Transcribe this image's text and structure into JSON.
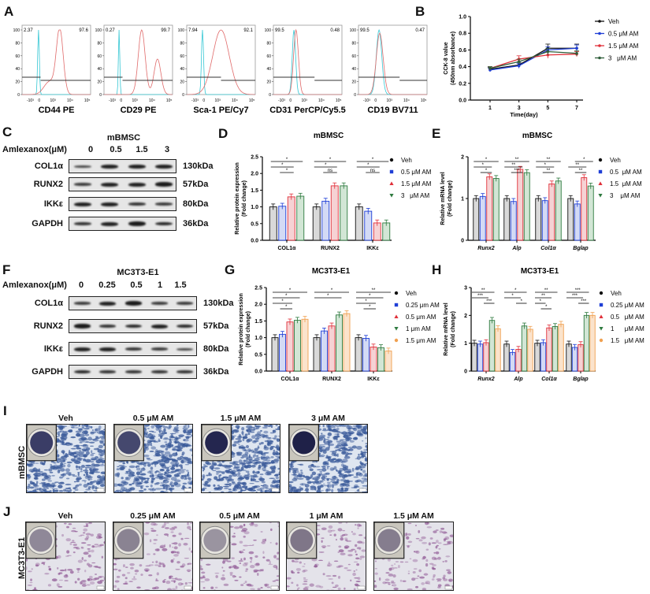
{
  "panel_letters": [
    "A",
    "B",
    "C",
    "D",
    "E",
    "F",
    "G",
    "H",
    "I",
    "J"
  ],
  "flow": {
    "y_ticks": [
      "0",
      "20",
      "40",
      "60",
      "80",
      "100"
    ],
    "x_ticks": [
      "-10³",
      "0",
      "10³",
      "10⁴",
      "10⁵"
    ],
    "panels": [
      {
        "marker": "CD44 PE",
        "neg_pct": "2.37",
        "pos_pct": "97.6"
      },
      {
        "marker": "CD29 PE",
        "neg_pct": "0.27",
        "pos_pct": "99.7"
      },
      {
        "marker": "Sca-1 PE/Cy7",
        "neg_pct": "7.94",
        "pos_pct": "92.1"
      },
      {
        "marker": "CD31 PerCP/Cy5.5",
        "neg_pct": "99.5",
        "pos_pct": "0.48"
      },
      {
        "marker": "CD19 BV711",
        "neg_pct": "99.5",
        "pos_pct": "0.47"
      }
    ],
    "colors": {
      "isotype": "#35c7d4",
      "stained": "#e06a6a"
    }
  },
  "blots": {
    "C": {
      "title": "mBMSC",
      "treatment_label": "Amlexanox(μM)",
      "lanes": [
        "0",
        "0.5",
        "1.5",
        "3"
      ],
      "rows": [
        {
          "protein": "COL1α",
          "kda": "130kDa"
        },
        {
          "protein": "RUNX2",
          "kda": "57kDa"
        },
        {
          "protein": "IKKε",
          "kda": "80kDa"
        },
        {
          "protein": "GAPDH",
          "kda": "36kDa"
        }
      ]
    },
    "F": {
      "title": "MC3T3-E1",
      "treatment_label": "Amlexanox(μM)",
      "lanes": [
        "0",
        "0.25",
        "0.5",
        "1",
        "1.5"
      ],
      "rows": [
        {
          "protein": "COL1α",
          "kda": "130kDa"
        },
        {
          "protein": "RUNX2",
          "kda": "57kDa"
        },
        {
          "protein": "IKKε",
          "kda": "80kDa"
        },
        {
          "protein": "GAPDH",
          "kda": "36kDa"
        }
      ]
    }
  },
  "staining": {
    "I": {
      "row_label": "mBMSC",
      "titles": [
        "Veh",
        "0.5 μM AM",
        "1.5 μM AM",
        "3 μM AM"
      ],
      "stain_color": "#3a5a9a"
    },
    "J": {
      "row_label": "MC3T3-E1",
      "titles": [
        "Veh",
        "0.25 μM AM",
        "0.5 μM AM",
        "1 μM AM",
        "1.5 μM AM"
      ],
      "stain_color": "#8a4f8f"
    }
  },
  "chart_data": [
    {
      "id": "B",
      "type": "line",
      "title": "",
      "xlabel": "Time(day)",
      "ylabel": "CCK-8 value\n(450nm absorbance)",
      "x": [
        1,
        3,
        5,
        7
      ],
      "xticks": [
        "1",
        "3",
        "5",
        "7"
      ],
      "ylim": [
        0,
        1.0
      ],
      "yticks": [
        "0.0",
        "0.2",
        "0.4",
        "0.6",
        "0.8",
        "1.0"
      ],
      "legend": "right",
      "series": [
        {
          "name": "Veh",
          "color": "#111111",
          "values": [
            0.37,
            0.42,
            0.62,
            0.62
          ],
          "err": [
            0.02,
            0.03,
            0.05,
            0.05
          ]
        },
        {
          "name": "0.5 μM AM",
          "color": "#1f3fd6",
          "values": [
            0.36,
            0.41,
            0.6,
            0.62
          ],
          "err": [
            0.02,
            0.03,
            0.04,
            0.04
          ]
        },
        {
          "name": "1.5 μM AM",
          "color": "#e0303a",
          "values": [
            0.38,
            0.49,
            0.54,
            0.55
          ],
          "err": [
            0.02,
            0.04,
            0.04,
            0.03
          ]
        },
        {
          "name": "3   μM AM",
          "color": "#2e5e3a",
          "values": [
            0.38,
            0.46,
            0.58,
            0.56
          ],
          "err": [
            0.02,
            0.03,
            0.04,
            0.03
          ]
        }
      ]
    },
    {
      "id": "D",
      "type": "bar",
      "title": "mBMSC",
      "ylabel": "Relative protein expression\n(Fold change)",
      "categories": [
        "COL1α",
        "RUNX2",
        "IKKε"
      ],
      "italic_categories": false,
      "ylim": [
        0,
        2.5
      ],
      "yticks": [
        "0.0",
        "0.5",
        "1.0",
        "1.5",
        "2.0",
        "2.5"
      ],
      "legend": "right",
      "series": [
        {
          "name": "Veh",
          "color": "#111111",
          "fill": "#d9d9d9",
          "values": [
            1.0,
            1.0,
            1.0
          ]
        },
        {
          "name": "0.5 μM AM",
          "color": "#1f3fd6",
          "fill": "#d3daf5",
          "values": [
            1.02,
            1.17,
            0.87
          ]
        },
        {
          "name": "1.5 μM AM",
          "color": "#e0303a",
          "fill": "#f6d2d4",
          "values": [
            1.3,
            1.63,
            0.52
          ]
        },
        {
          "name": "3   μM AM",
          "color": "#2e7a3f",
          "fill": "#d2e6d5",
          "values": [
            1.32,
            1.63,
            0.52
          ]
        }
      ],
      "significance": [
        [
          {
            "from": 0,
            "to": 3,
            "label": "*"
          },
          {
            "from": 0,
            "to": 2,
            "label": "*"
          },
          {
            "from": 1,
            "to": 2,
            "label": "*"
          }
        ],
        [
          {
            "from": 0,
            "to": 3,
            "label": "*"
          },
          {
            "from": 0,
            "to": 2,
            "label": "*"
          },
          {
            "from": 1,
            "to": 2,
            "label": "ns"
          }
        ],
        [
          {
            "from": 0,
            "to": 3,
            "label": "*"
          },
          {
            "from": 0,
            "to": 2,
            "label": "*"
          },
          {
            "from": 1,
            "to": 2,
            "label": "ns"
          }
        ]
      ]
    },
    {
      "id": "E",
      "type": "bar",
      "title": "mBMSC",
      "ylabel": "Relative mRNA level\n(Fold change)",
      "categories": [
        "Runx2",
        "Alp",
        "Col1α",
        "Bglap"
      ],
      "italic_categories": true,
      "ylim": [
        0,
        2
      ],
      "yticks": [
        "0",
        "1",
        "2"
      ],
      "legend": "right",
      "series": [
        {
          "name": "Veh",
          "color": "#111111",
          "fill": "#d9d9d9",
          "values": [
            1.0,
            1.0,
            1.0,
            1.0
          ]
        },
        {
          "name": "0.5  μM AM",
          "color": "#1f3fd6",
          "fill": "#d3daf5",
          "values": [
            1.05,
            0.93,
            0.95,
            0.87
          ]
        },
        {
          "name": "1.5  μM AM",
          "color": "#e0303a",
          "fill": "#f6d2d4",
          "values": [
            1.52,
            1.7,
            1.35,
            1.5
          ]
        },
        {
          "name": "3    μM AM",
          "color": "#2e7a3f",
          "fill": "#d2e6d5",
          "values": [
            1.48,
            1.62,
            1.42,
            1.3
          ]
        }
      ],
      "significance": [
        [
          {
            "from": 0,
            "to": 3,
            "label": "*"
          },
          {
            "from": 0,
            "to": 2,
            "label": "*"
          },
          {
            "from": 1,
            "to": 2,
            "label": "*"
          }
        ],
        [
          {
            "from": 0,
            "to": 3,
            "label": "**"
          },
          {
            "from": 0,
            "to": 2,
            "label": "**"
          },
          {
            "from": 1,
            "to": 2,
            "label": "***"
          }
        ],
        [
          {
            "from": 0,
            "to": 3,
            "label": "**"
          },
          {
            "from": 0,
            "to": 2,
            "label": "*"
          },
          {
            "from": 1,
            "to": 2,
            "label": "**"
          }
        ],
        [
          {
            "from": 1,
            "to": 3,
            "label": "*"
          },
          {
            "from": 0,
            "to": 2,
            "label": "**"
          },
          {
            "from": 1,
            "to": 2,
            "label": "**"
          }
        ]
      ]
    },
    {
      "id": "G",
      "type": "bar",
      "title": "MC3T3-E1",
      "ylabel": "Relative protein expression\n(Fold change)",
      "categories": [
        "COL1α",
        "RUNX2",
        "IKKε"
      ],
      "italic_categories": false,
      "ylim": [
        0,
        2.5
      ],
      "yticks": [
        "0.0",
        "0.5",
        "1.0",
        "1.5",
        "2.0",
        "2.5"
      ],
      "legend": "right",
      "series": [
        {
          "name": "Veh",
          "color": "#111111",
          "fill": "#d9d9d9",
          "values": [
            1.0,
            1.0,
            1.0
          ]
        },
        {
          "name": "0.25 μm AM",
          "color": "#1f3fd6",
          "fill": "#d3daf5",
          "values": [
            1.1,
            1.2,
            0.98
          ]
        },
        {
          "name": "0.5 μm AM",
          "color": "#e0303a",
          "fill": "#f6d2d4",
          "values": [
            1.47,
            1.35,
            0.72
          ]
        },
        {
          "name": "1 μm AM",
          "color": "#2e7a3f",
          "fill": "#d2e6d5",
          "values": [
            1.52,
            1.68,
            0.7
          ]
        },
        {
          "name": "1.5 μm AM",
          "color": "#f0a050",
          "fill": "#fbe3cc",
          "values": [
            1.55,
            1.72,
            0.6
          ]
        }
      ],
      "significance": [
        [
          {
            "from": 0,
            "to": 4,
            "label": "*"
          },
          {
            "from": 0,
            "to": 3,
            "label": "*"
          },
          {
            "from": 0,
            "to": 2,
            "label": "*"
          },
          {
            "from": 1,
            "to": 2,
            "label": "*"
          }
        ],
        [
          {
            "from": 0,
            "to": 4,
            "label": "*"
          },
          {
            "from": 0,
            "to": 3,
            "label": "*"
          }
        ],
        [
          {
            "from": 0,
            "to": 4,
            "label": "**"
          },
          {
            "from": 0,
            "to": 3,
            "label": "*"
          },
          {
            "from": 0,
            "to": 2,
            "label": "*"
          },
          {
            "from": 1,
            "to": 2,
            "label": "*"
          }
        ]
      ]
    },
    {
      "id": "H",
      "type": "bar",
      "title": "MC3T3-E1",
      "ylabel": "Relative mRNA level\n(Fold change)",
      "categories": [
        "Runx2",
        "Alp",
        "Col1α",
        "Bglap"
      ],
      "italic_categories": true,
      "ylim": [
        0,
        3
      ],
      "yticks": [
        "0",
        "1",
        "2",
        "3"
      ],
      "legend": "right",
      "series": [
        {
          "name": "Veh",
          "color": "#111111",
          "fill": "#d9d9d9",
          "values": [
            1.0,
            0.97,
            1.0,
            0.97
          ]
        },
        {
          "name": "0.25 μM AM",
          "color": "#1f3fd6",
          "fill": "#d3daf5",
          "values": [
            0.97,
            0.67,
            1.02,
            0.85
          ]
        },
        {
          "name": "0.5   μM AM",
          "color": "#e0303a",
          "fill": "#f6d2d4",
          "values": [
            1.02,
            0.78,
            1.55,
            0.95
          ]
        },
        {
          "name": "1      μM AM",
          "color": "#2e7a3f",
          "fill": "#d2e6d5",
          "values": [
            1.82,
            1.62,
            1.6,
            2.0
          ]
        },
        {
          "name": "1.5   μM AM",
          "color": "#f0a050",
          "fill": "#fbe3cc",
          "values": [
            1.52,
            1.5,
            1.68,
            2.0
          ]
        }
      ],
      "significance": [
        [
          {
            "from": 0,
            "to": 3,
            "label": "**"
          },
          {
            "from": 0,
            "to": 2,
            "label": "***"
          },
          {
            "from": 2,
            "to": 3,
            "label": "***"
          }
        ],
        [
          {
            "from": 0,
            "to": 3,
            "label": "*"
          },
          {
            "from": 0,
            "to": 2,
            "label": "*"
          },
          {
            "from": 2,
            "to": 3,
            "label": "*"
          }
        ],
        [
          {
            "from": 0,
            "to": 3,
            "label": "**"
          },
          {
            "from": 0,
            "to": 2,
            "label": "**"
          },
          {
            "from": 0,
            "to": 1,
            "label": "*"
          },
          {
            "from": 1,
            "to": 2,
            "label": "*"
          }
        ],
        [
          {
            "from": 0,
            "to": 3,
            "label": "***"
          },
          {
            "from": 0,
            "to": 2,
            "label": "***"
          },
          {
            "from": 2,
            "to": 3,
            "label": "***"
          }
        ]
      ]
    }
  ]
}
